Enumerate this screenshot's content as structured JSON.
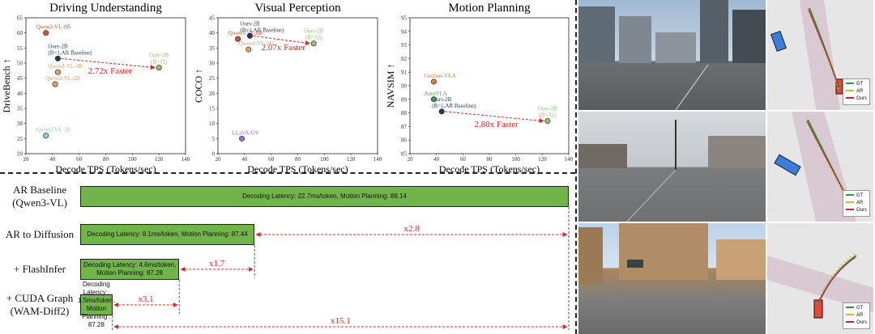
{
  "chart_data": [
    {
      "type": "scatter",
      "title": "Driving Understanding",
      "xlabel": "Decode TPS (Tokens/sec)",
      "ylabel": "DriveBench ↑",
      "xlim": [
        20,
        140
      ],
      "ylim": [
        20,
        65
      ],
      "xticks": [
        "20",
        "40",
        "60",
        "80",
        "100",
        "120",
        "140"
      ],
      "yticks": [
        "20",
        "25",
        "30",
        "35",
        "40",
        "45",
        "50",
        "55",
        "60",
        "65"
      ],
      "points": [
        {
          "label": "Qwen3-VL-8B",
          "x": 35,
          "y": 60,
          "color": "#d4553a"
        },
        {
          "label": "Ours-2B\n(B=1,AR Baseline)",
          "x": 44,
          "y": 51.5,
          "color": "#1f3b5a"
        },
        {
          "label": "Qwen3-VL-4B",
          "x": 44,
          "y": 47,
          "color": "#e0a062"
        },
        {
          "label": "Qwen3-VL-2B",
          "x": 42,
          "y": 43,
          "color": "#e0a062"
        },
        {
          "label": "Qwen3-VL-2B",
          "x": 35,
          "y": 26,
          "color": "#8fd1d8"
        },
        {
          "label": "Ours-2B\n(B=32)",
          "x": 120,
          "y": 48.5,
          "color": "#8cc56b"
        }
      ],
      "arrow": {
        "from": [
          44,
          51.5
        ],
        "to": [
          120,
          48.5
        ],
        "label": "2.72x Faster"
      }
    },
    {
      "type": "scatter",
      "title": "Visual Perception",
      "xlabel": "Decode TPS (Tokens/sec)",
      "ylabel": "COCO ↑",
      "xlim": [
        20,
        140
      ],
      "ylim": [
        0,
        45
      ],
      "xticks": [
        "20",
        "40",
        "60",
        "80",
        "100",
        "120",
        "140"
      ],
      "yticks": [
        "0",
        "5",
        "10",
        "15",
        "20",
        "25",
        "30",
        "35",
        "40",
        "45"
      ],
      "points": [
        {
          "label": "Qwen3-VL-8B",
          "x": 35,
          "y": 38,
          "color": "#d4553a"
        },
        {
          "label": "Ours-2B\n(B=1,AR Baseline)",
          "x": 44,
          "y": 39,
          "color": "#1f3b5a"
        },
        {
          "label": "Qwen3-VL-2B",
          "x": 43,
          "y": 34.5,
          "color": "#e0a062"
        },
        {
          "label": "Ours-2B\n(B=32)",
          "x": 92,
          "y": 36.5,
          "color": "#8cc56b"
        },
        {
          "label": "LLaVA-OV",
          "x": 38,
          "y": 5,
          "color": "#9b6fd6"
        }
      ],
      "arrow": {
        "from": [
          44,
          39
        ],
        "to": [
          92,
          36.5
        ],
        "label": "2.07x Faster"
      }
    },
    {
      "type": "scatter",
      "title": "Motion Planning",
      "xlabel": "Decode TPS (Tokens/sec)",
      "ylabel": "NAVSIM ↑",
      "xlim": [
        20,
        140
      ],
      "ylim": [
        85,
        95
      ],
      "xticks": [
        "20",
        "40",
        "60",
        "80",
        "100",
        "120",
        "140"
      ],
      "yticks": [
        "85",
        "86",
        "87",
        "88",
        "89",
        "90",
        "91",
        "92",
        "93",
        "94",
        "95"
      ],
      "points": [
        {
          "label": "Cosmos-VLA",
          "x": 38,
          "y": 90.3,
          "color": "#e07a3a"
        },
        {
          "label": "AutoVLA",
          "x": 38,
          "y": 89,
          "color": "#4fae4f"
        },
        {
          "label": "Ours-2B\n(B=1,AR Baseline)",
          "x": 44,
          "y": 88.1,
          "color": "#1f3b5a"
        },
        {
          "label": "Ours-2B\n(B=32)",
          "x": 124,
          "y": 87.4,
          "color": "#8cc56b"
        }
      ],
      "arrow": {
        "from": [
          44,
          88.1
        ],
        "to": [
          124,
          87.4
        ],
        "label": "2.80x Faster"
      }
    },
    {
      "type": "bar",
      "orientation": "horizontal",
      "categories": [
        "AR Baseline\n(Qwen3-VL)",
        "AR to Diffusion",
        "+ FlashInfer",
        "+ CUDA Graph\n(WAM-Diff2)"
      ],
      "latency_ms_per_token": [
        22.7,
        8.1,
        4.6,
        1.5
      ],
      "motion_planning": [
        88.14,
        87.44,
        87.28,
        87.28
      ],
      "bar_texts": [
        "Decoding Latency: 22.7ms/token,   Motion Planning: 88.14",
        "Decoding Latency:  8.1ms/token,   Motion Planning: 87.44",
        "Decoding Latency:  4.6ms/token,\nMotion Planning: 87.28",
        "Decoding Latency :  1.5ms/token,\nMotion Planning : 87.28"
      ],
      "speedups": [
        "x2.8",
        "x1.7",
        "x3.1",
        "x15.1"
      ]
    }
  ],
  "figure": {
    "legend": {
      "gt": "GT",
      "ar": "AR",
      "ours": "Ours"
    },
    "colors": {
      "bar": "#71b54a",
      "arrow": "#e32424",
      "gt": "#2e9b3a",
      "ar": "#e6b422",
      "ours": "#c0234a"
    }
  }
}
